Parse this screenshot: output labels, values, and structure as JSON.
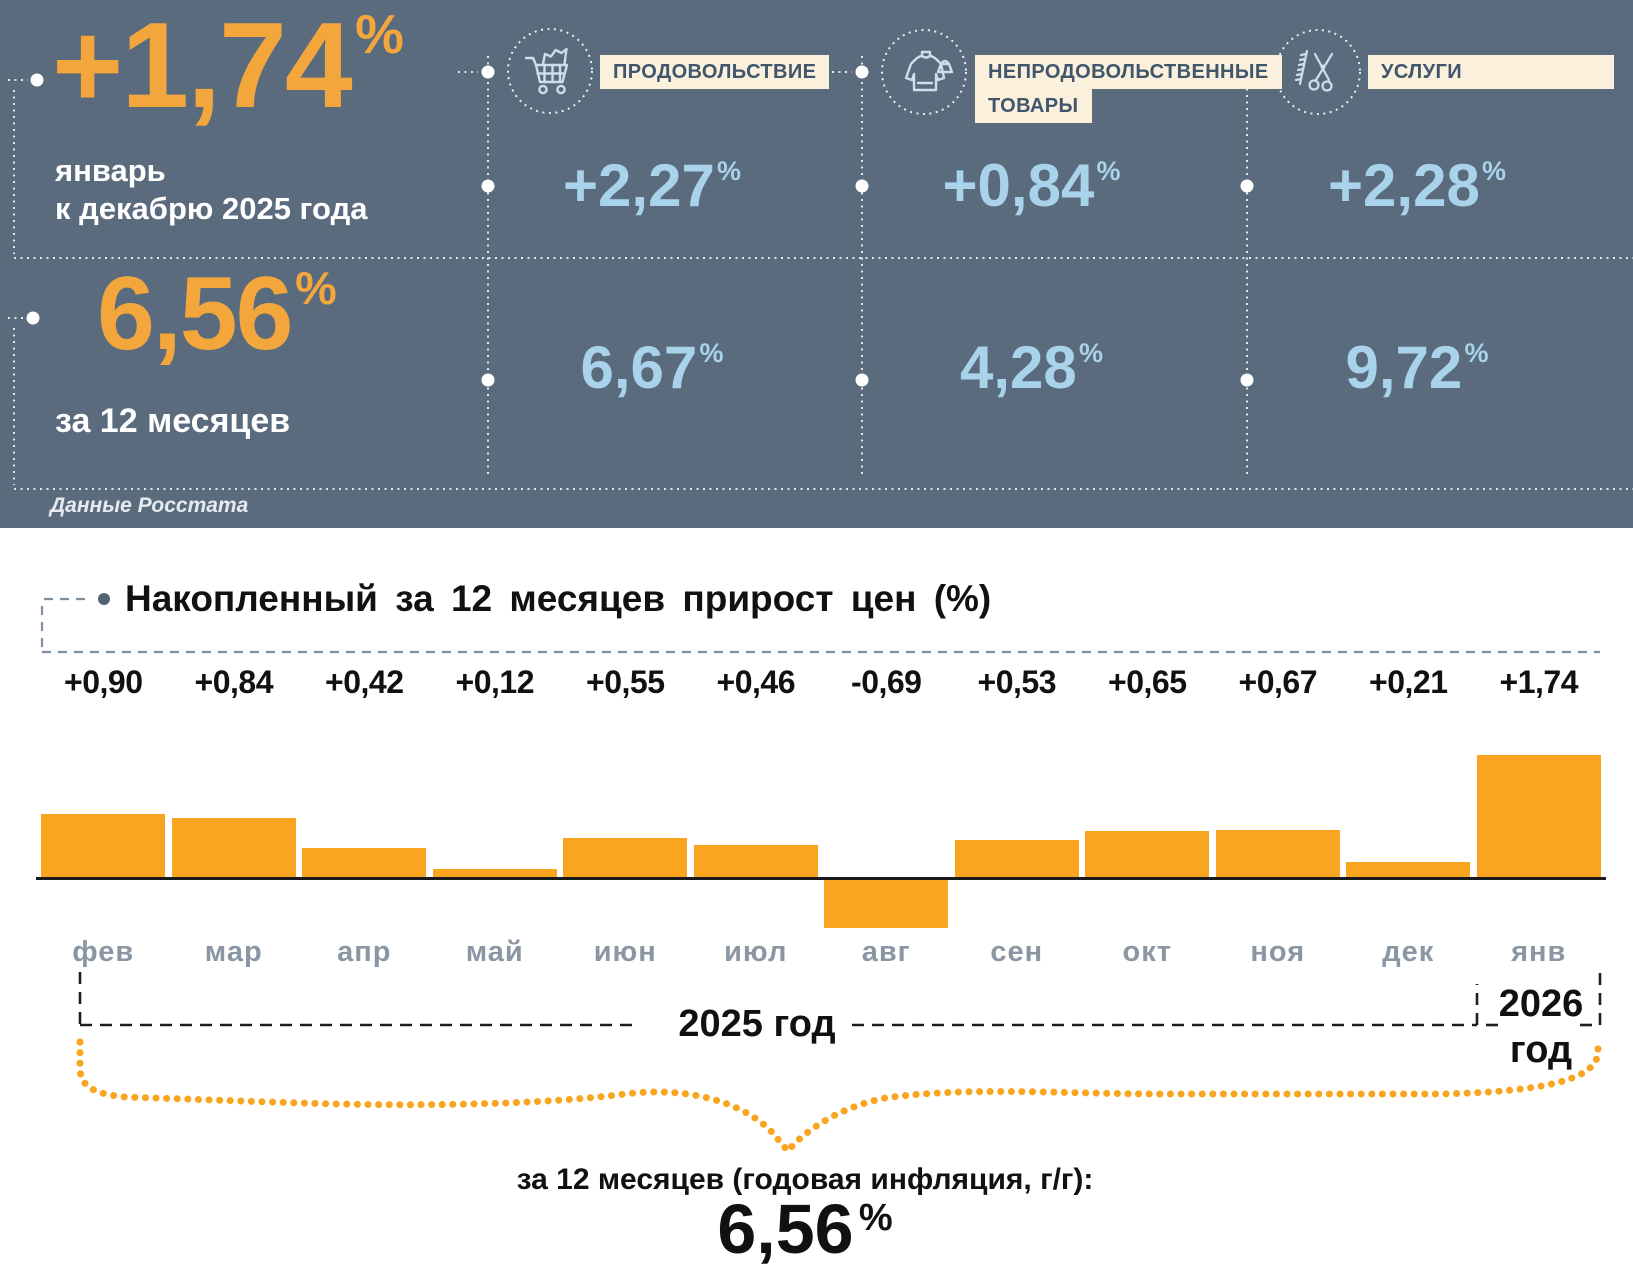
{
  "header": {
    "background": "#5A6B7E",
    "accent_color": "#F2A63C",
    "value_color": "#A9D3EA",
    "main": {
      "value": "+1,74",
      "percent": "%",
      "caption_lines": [
        "январь",
        "к декабрю 2025 года"
      ]
    },
    "annual": {
      "value": "6,56",
      "percent": "%",
      "caption": "за 12 месяцев"
    },
    "source": "Данные Росстата",
    "categories": [
      {
        "icon": "cart-icon",
        "label_lines": [
          "ПРОДОВОЛЬСТВИЕ"
        ],
        "monthly": "+2,27",
        "annual": "6,67",
        "percent": "%"
      },
      {
        "icon": "clothes-bag-icon",
        "label_lines": [
          "НЕПРОДОВОЛЬСТВЕННЫЕ",
          "ТОВАРЫ"
        ],
        "monthly": "+0,84",
        "annual": "4,28",
        "percent": "%"
      },
      {
        "icon": "scissors-comb-icon",
        "label_lines": [
          "УСЛУГИ"
        ],
        "monthly": "+2,28",
        "annual": "9,72",
        "percent": "%"
      }
    ]
  },
  "chart_data": {
    "type": "bar",
    "title": "Накопленный за 12 месяцев прирост цен (%)",
    "categories": [
      "фев",
      "мар",
      "апр",
      "май",
      "июн",
      "июл",
      "авг",
      "сен",
      "окт",
      "ноя",
      "дек",
      "янв"
    ],
    "values": [
      0.9,
      0.84,
      0.42,
      0.12,
      0.55,
      0.46,
      -0.69,
      0.53,
      0.65,
      0.67,
      0.21,
      1.74
    ],
    "value_labels": [
      "+0,90",
      "+0,84",
      "+0,42",
      "+0,12",
      "+0,55",
      "+0,46",
      "-0,69",
      "+0,53",
      "+0,65",
      "+0,67",
      "+0,21",
      "+1,74"
    ],
    "bar_color": "#F9A51F",
    "xlabel": "",
    "ylabel": "",
    "grid": false,
    "legend": false,
    "year_brackets": {
      "left": "2025 год",
      "right_lines": [
        "2026",
        "год"
      ]
    }
  },
  "footer": {
    "label": "за 12 месяцев (годовая инфляция, г/г):",
    "value": "6,56",
    "percent": "%"
  }
}
